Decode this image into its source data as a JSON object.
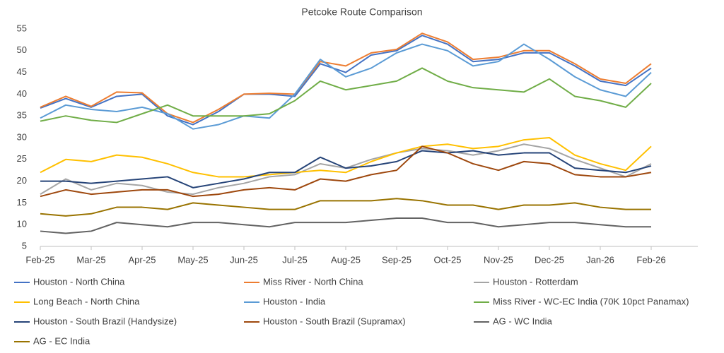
{
  "chart_data": {
    "type": "line",
    "title": "Petcoke Route Comparison",
    "categories": [
      "Feb-25",
      null,
      "Mar-25",
      null,
      "Apr-25",
      null,
      "May-25",
      null,
      "Jun-25",
      null,
      "Jul-25",
      null,
      "Aug-25",
      null,
      "Sep-25",
      null,
      "Oct-25",
      null,
      "Nov-25",
      null,
      "Dec-25",
      null,
      "Jan-26",
      null,
      "Feb-26"
    ],
    "ylim": [
      5,
      55
    ],
    "yticks": [
      5,
      10,
      15,
      20,
      25,
      30,
      35,
      40,
      45,
      50,
      55
    ],
    "grid": false,
    "series": [
      {
        "name": "Houston - North China",
        "color": "#4472c4",
        "values": [
          36.8,
          39,
          37,
          39.5,
          40,
          35,
          33,
          36,
          40,
          40,
          39.5,
          47,
          45,
          49,
          50,
          53.5,
          51.5,
          47.5,
          48,
          49.5,
          49.5,
          46.5,
          43,
          42,
          46
        ]
      },
      {
        "name": "Miss River - North China",
        "color": "#ed7d31",
        "values": [
          37,
          39.5,
          37.2,
          40.5,
          40.3,
          35.5,
          33.5,
          36.5,
          40,
          40.2,
          40,
          47.5,
          46.5,
          49.5,
          50.3,
          54,
          52,
          48,
          48.5,
          50,
          50,
          47,
          43.5,
          42.5,
          47
        ]
      },
      {
        "name": "Houston - Rotterdam",
        "color": "#a5a5a5",
        "values": [
          17,
          20.5,
          18,
          19.5,
          19,
          17.5,
          17,
          18.5,
          19.5,
          21,
          21.5,
          24,
          23,
          25,
          26.5,
          27.5,
          27,
          26,
          27,
          28.5,
          27.5,
          25,
          23,
          21,
          24
        ]
      },
      {
        "name": "Long Beach - North China",
        "color": "#ffc000",
        "values": [
          22,
          25,
          24.5,
          26,
          25.5,
          24,
          22,
          21,
          21,
          21.5,
          22,
          22.5,
          22,
          24.5,
          26.5,
          28,
          28.5,
          27.5,
          28,
          29.5,
          30,
          26,
          24,
          22.5,
          28
        ]
      },
      {
        "name": "Houston - India",
        "color": "#5b9bd5",
        "values": [
          34.5,
          37.5,
          36.5,
          36,
          37,
          35.5,
          32,
          33,
          35,
          34.5,
          40,
          48,
          44,
          46,
          49.5,
          51.5,
          50,
          46.5,
          47.5,
          51.5,
          48,
          44,
          41,
          39.5,
          45
        ]
      },
      {
        "name": "Miss River - WC-EC India (70K 10pct Panamax)",
        "color": "#70ad47",
        "values": [
          33.8,
          35,
          34,
          33.5,
          35.5,
          37.5,
          35,
          35,
          35,
          35.5,
          38.5,
          43,
          41,
          42,
          43,
          46,
          43,
          41.5,
          41,
          40.5,
          43.5,
          39.5,
          38.5,
          37,
          42.5
        ]
      },
      {
        "name": "Houston - South Brazil (Handysize)",
        "color": "#264478",
        "values": [
          20,
          20,
          19.5,
          20,
          20.5,
          21,
          18.5,
          19.5,
          20.5,
          22,
          22,
          25.5,
          23,
          23.5,
          24.5,
          27,
          26.5,
          27,
          26,
          26.5,
          26.5,
          23,
          22.5,
          22,
          23.5
        ]
      },
      {
        "name": "Houston - South Brazil (Supramax)",
        "color": "#9e480e",
        "values": [
          16.5,
          18,
          17,
          17.5,
          18,
          18,
          16.5,
          17,
          18,
          18.5,
          18,
          20.5,
          20,
          21.5,
          22.5,
          28,
          26.5,
          24,
          22.5,
          24.5,
          24,
          21.5,
          21,
          21,
          22
        ]
      },
      {
        "name": "AG - WC India",
        "color": "#636363",
        "values": [
          8.5,
          8,
          8.5,
          10.5,
          10,
          9.5,
          10.5,
          10.5,
          10,
          9.5,
          10.5,
          10.5,
          10.5,
          11,
          11.5,
          11.5,
          10.5,
          10.5,
          9.5,
          10,
          10.5,
          10.5,
          10,
          9.5,
          9.5
        ]
      },
      {
        "name": "AG - EC India",
        "color": "#997300",
        "values": [
          12.5,
          12,
          12.5,
          14,
          14,
          13.5,
          15,
          14.5,
          14,
          13.5,
          13.5,
          15.5,
          15.5,
          15.5,
          16,
          15.5,
          14.5,
          14.5,
          13.5,
          14.5,
          14.5,
          15,
          14,
          13.5,
          13.5
        ]
      }
    ]
  }
}
